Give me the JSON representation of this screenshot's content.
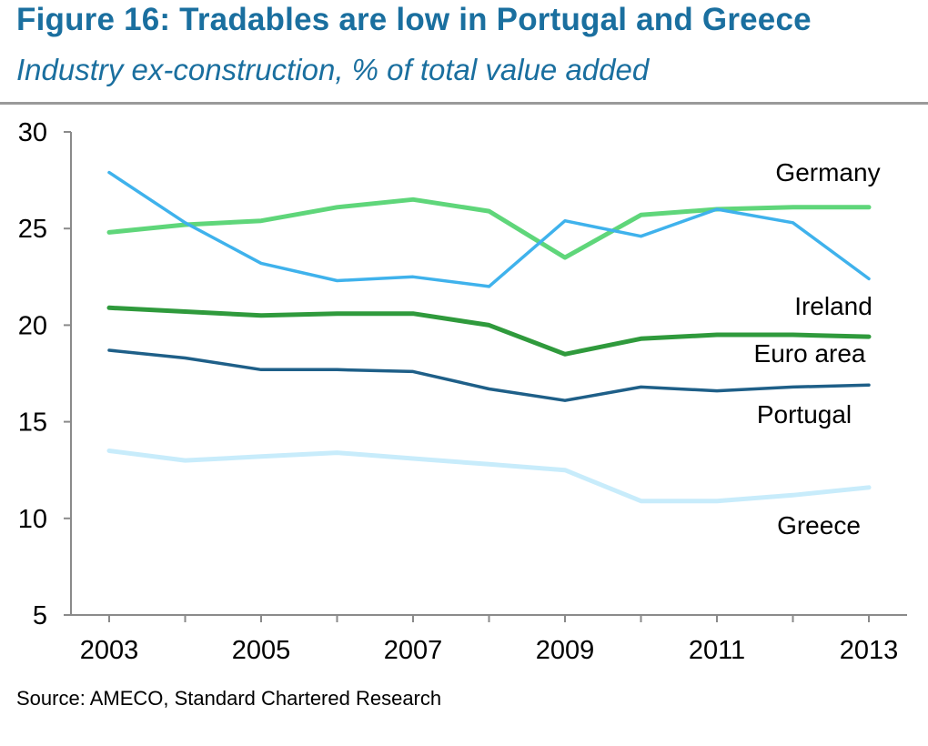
{
  "header": {
    "title": "Figure 16: Tradables are low in Portugal and Greece",
    "subtitle": "Industry ex-construction, % of total value added"
  },
  "footer": {
    "source": "Source: AMECO, Standard Chartered Research"
  },
  "chart_data": {
    "type": "line",
    "title": "Figure 16: Tradables are low in Portugal and Greece",
    "subtitle": "Industry ex-construction, % of total value added",
    "xlabel": "",
    "ylabel": "",
    "x": [
      2003,
      2004,
      2005,
      2006,
      2007,
      2008,
      2009,
      2010,
      2011,
      2012,
      2013
    ],
    "x_tick_labels": [
      "2003",
      "2005",
      "2007",
      "2009",
      "2011",
      "2013"
    ],
    "y_ticks": [
      5,
      10,
      15,
      20,
      25,
      30
    ],
    "y_tick_labels": [
      "5",
      "10",
      "15",
      "20",
      "25",
      "30"
    ],
    "ylim": [
      5,
      30
    ],
    "grid": false,
    "series": [
      {
        "name": "Germany",
        "color": "#5fd67a",
        "values": [
          24.8,
          25.2,
          25.4,
          26.1,
          26.5,
          25.9,
          23.5,
          25.7,
          26.0,
          26.1,
          26.1
        ]
      },
      {
        "name": "Ireland",
        "color": "#3fb2ec",
        "values": [
          27.9,
          25.3,
          23.2,
          22.3,
          22.5,
          22.0,
          25.4,
          24.6,
          26.0,
          25.3,
          22.4
        ]
      },
      {
        "name": "Euro area",
        "color": "#2f9a3c",
        "values": [
          20.9,
          20.7,
          20.5,
          20.6,
          20.6,
          20.0,
          18.5,
          19.3,
          19.5,
          19.5,
          19.4
        ]
      },
      {
        "name": "Portugal",
        "color": "#1e5f88",
        "values": [
          18.7,
          18.3,
          17.7,
          17.7,
          17.6,
          16.7,
          16.1,
          16.8,
          16.6,
          16.8,
          16.9
        ]
      },
      {
        "name": "Greece",
        "color": "#c8ecfb",
        "values": [
          13.5,
          13.0,
          13.2,
          13.4,
          13.1,
          12.8,
          12.5,
          10.9,
          10.9,
          11.2,
          11.6
        ]
      }
    ]
  }
}
